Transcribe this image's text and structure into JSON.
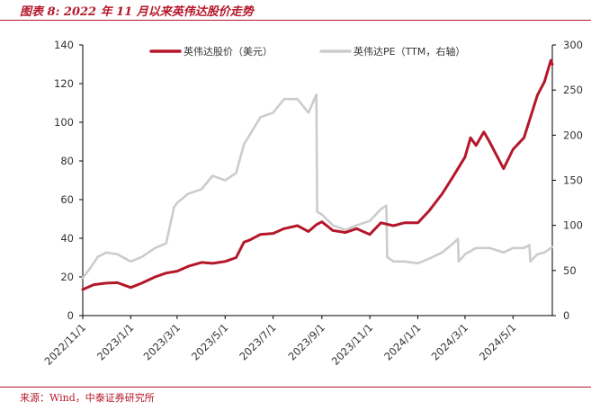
{
  "title": "图表 8:   2022 年 11 月以来英伟达股价走势",
  "source": "来源：Wind，中泰证券研究所",
  "chart_data": {
    "type": "line",
    "x_ticks": [
      "2022/11/1",
      "2023/1/1",
      "2023/3/1",
      "2023/5/1",
      "2023/7/1",
      "2023/9/1",
      "2023/11/1",
      "2024/1/1",
      "2024/3/1",
      "2024/5/1"
    ],
    "x_range": [
      "2022/11/1",
      "2024/6/20"
    ],
    "y_left": {
      "min": 0,
      "max": 140,
      "ticks": [
        0,
        20,
        40,
        60,
        80,
        100,
        120,
        140
      ]
    },
    "y_right": {
      "min": 0,
      "max": 300,
      "ticks": [
        0,
        50,
        100,
        150,
        200,
        250,
        300
      ]
    },
    "grid": false,
    "legend_position": "top",
    "series": [
      {
        "name": "英伟达股价（美元）",
        "axis": "left",
        "color": "#b5172a",
        "points": [
          [
            "2022/11/1",
            13.5
          ],
          [
            "2022/11/15",
            16.0
          ],
          [
            "2022/12/1",
            16.8
          ],
          [
            "2022/12/15",
            17.0
          ],
          [
            "2023/1/1",
            14.5
          ],
          [
            "2023/1/15",
            16.8
          ],
          [
            "2023/2/1",
            20.0
          ],
          [
            "2023/2/15",
            22.0
          ],
          [
            "2023/3/1",
            23.0
          ],
          [
            "2023/3/15",
            25.5
          ],
          [
            "2023/4/1",
            27.5
          ],
          [
            "2023/4/15",
            27.0
          ],
          [
            "2023/5/1",
            28.0
          ],
          [
            "2023/5/15",
            30.0
          ],
          [
            "2023/5/25",
            38.0
          ],
          [
            "2023/6/1",
            39.0
          ],
          [
            "2023/6/15",
            42.0
          ],
          [
            "2023/7/1",
            42.5
          ],
          [
            "2023/7/15",
            45.0
          ],
          [
            "2023/8/1",
            46.5
          ],
          [
            "2023/8/15",
            43.5
          ],
          [
            "2023/8/25",
            47.0
          ],
          [
            "2023/9/1",
            48.5
          ],
          [
            "2023/9/15",
            44.0
          ],
          [
            "2023/10/1",
            43.0
          ],
          [
            "2023/10/15",
            45.0
          ],
          [
            "2023/11/1",
            42.0
          ],
          [
            "2023/11/15",
            48.0
          ],
          [
            "2023/12/1",
            46.5
          ],
          [
            "2023/12/15",
            48.0
          ],
          [
            "2024/1/1",
            48.0
          ],
          [
            "2024/1/15",
            54.0
          ],
          [
            "2024/2/1",
            63.0
          ],
          [
            "2024/2/15",
            72.0
          ],
          [
            "2024/3/1",
            82.0
          ],
          [
            "2024/3/8",
            92.0
          ],
          [
            "2024/3/15",
            88.0
          ],
          [
            "2024/3/25",
            95.0
          ],
          [
            "2024/4/1",
            90.0
          ],
          [
            "2024/4/19",
            76.0
          ],
          [
            "2024/5/1",
            86.0
          ],
          [
            "2024/5/15",
            92.0
          ],
          [
            "2024/5/25",
            105.0
          ],
          [
            "2024/6/1",
            114.0
          ],
          [
            "2024/6/10",
            121.0
          ],
          [
            "2024/6/18",
            132.0
          ],
          [
            "2024/6/20",
            130.0
          ]
        ]
      },
      {
        "name": "英伟达PE（TTM，右轴）",
        "axis": "right",
        "color": "#cccccc",
        "points": [
          [
            "2022/11/1",
            42
          ],
          [
            "2022/11/10",
            52
          ],
          [
            "2022/11/20",
            65
          ],
          [
            "2022/12/1",
            70
          ],
          [
            "2022/12/15",
            68
          ],
          [
            "2023/1/1",
            60
          ],
          [
            "2023/1/15",
            65
          ],
          [
            "2023/2/1",
            75
          ],
          [
            "2023/2/15",
            80
          ],
          [
            "2023/2/25",
            120
          ],
          [
            "2023/3/1",
            125
          ],
          [
            "2023/3/15",
            135
          ],
          [
            "2023/4/1",
            140
          ],
          [
            "2023/4/15",
            155
          ],
          [
            "2023/5/1",
            150
          ],
          [
            "2023/5/15",
            158
          ],
          [
            "2023/5/25",
            190
          ],
          [
            "2023/6/1",
            200
          ],
          [
            "2023/6/15",
            220
          ],
          [
            "2023/7/1",
            225
          ],
          [
            "2023/7/15",
            240
          ],
          [
            "2023/8/1",
            240
          ],
          [
            "2023/8/15",
            225
          ],
          [
            "2023/8/25",
            245
          ],
          [
            "2023/8/26",
            115
          ],
          [
            "2023/9/1",
            112
          ],
          [
            "2023/9/15",
            100
          ],
          [
            "2023/10/1",
            95
          ],
          [
            "2023/10/15",
            100
          ],
          [
            "2023/11/1",
            105
          ],
          [
            "2023/11/15",
            118
          ],
          [
            "2023/11/22",
            122
          ],
          [
            "2023/11/23",
            65
          ],
          [
            "2023/12/1",
            60
          ],
          [
            "2023/12/15",
            60
          ],
          [
            "2024/1/1",
            58
          ],
          [
            "2024/1/15",
            63
          ],
          [
            "2024/2/1",
            70
          ],
          [
            "2024/2/15",
            80
          ],
          [
            "2024/2/21",
            85
          ],
          [
            "2024/2/22",
            60
          ],
          [
            "2024/3/1",
            68
          ],
          [
            "2024/3/15",
            75
          ],
          [
            "2024/4/1",
            75
          ],
          [
            "2024/4/19",
            70
          ],
          [
            "2024/5/1",
            75
          ],
          [
            "2024/5/15",
            75
          ],
          [
            "2024/5/22",
            78
          ],
          [
            "2024/5/23",
            60
          ],
          [
            "2024/6/1",
            68
          ],
          [
            "2024/6/10",
            70
          ],
          [
            "2024/6/20",
            76
          ]
        ]
      }
    ]
  }
}
